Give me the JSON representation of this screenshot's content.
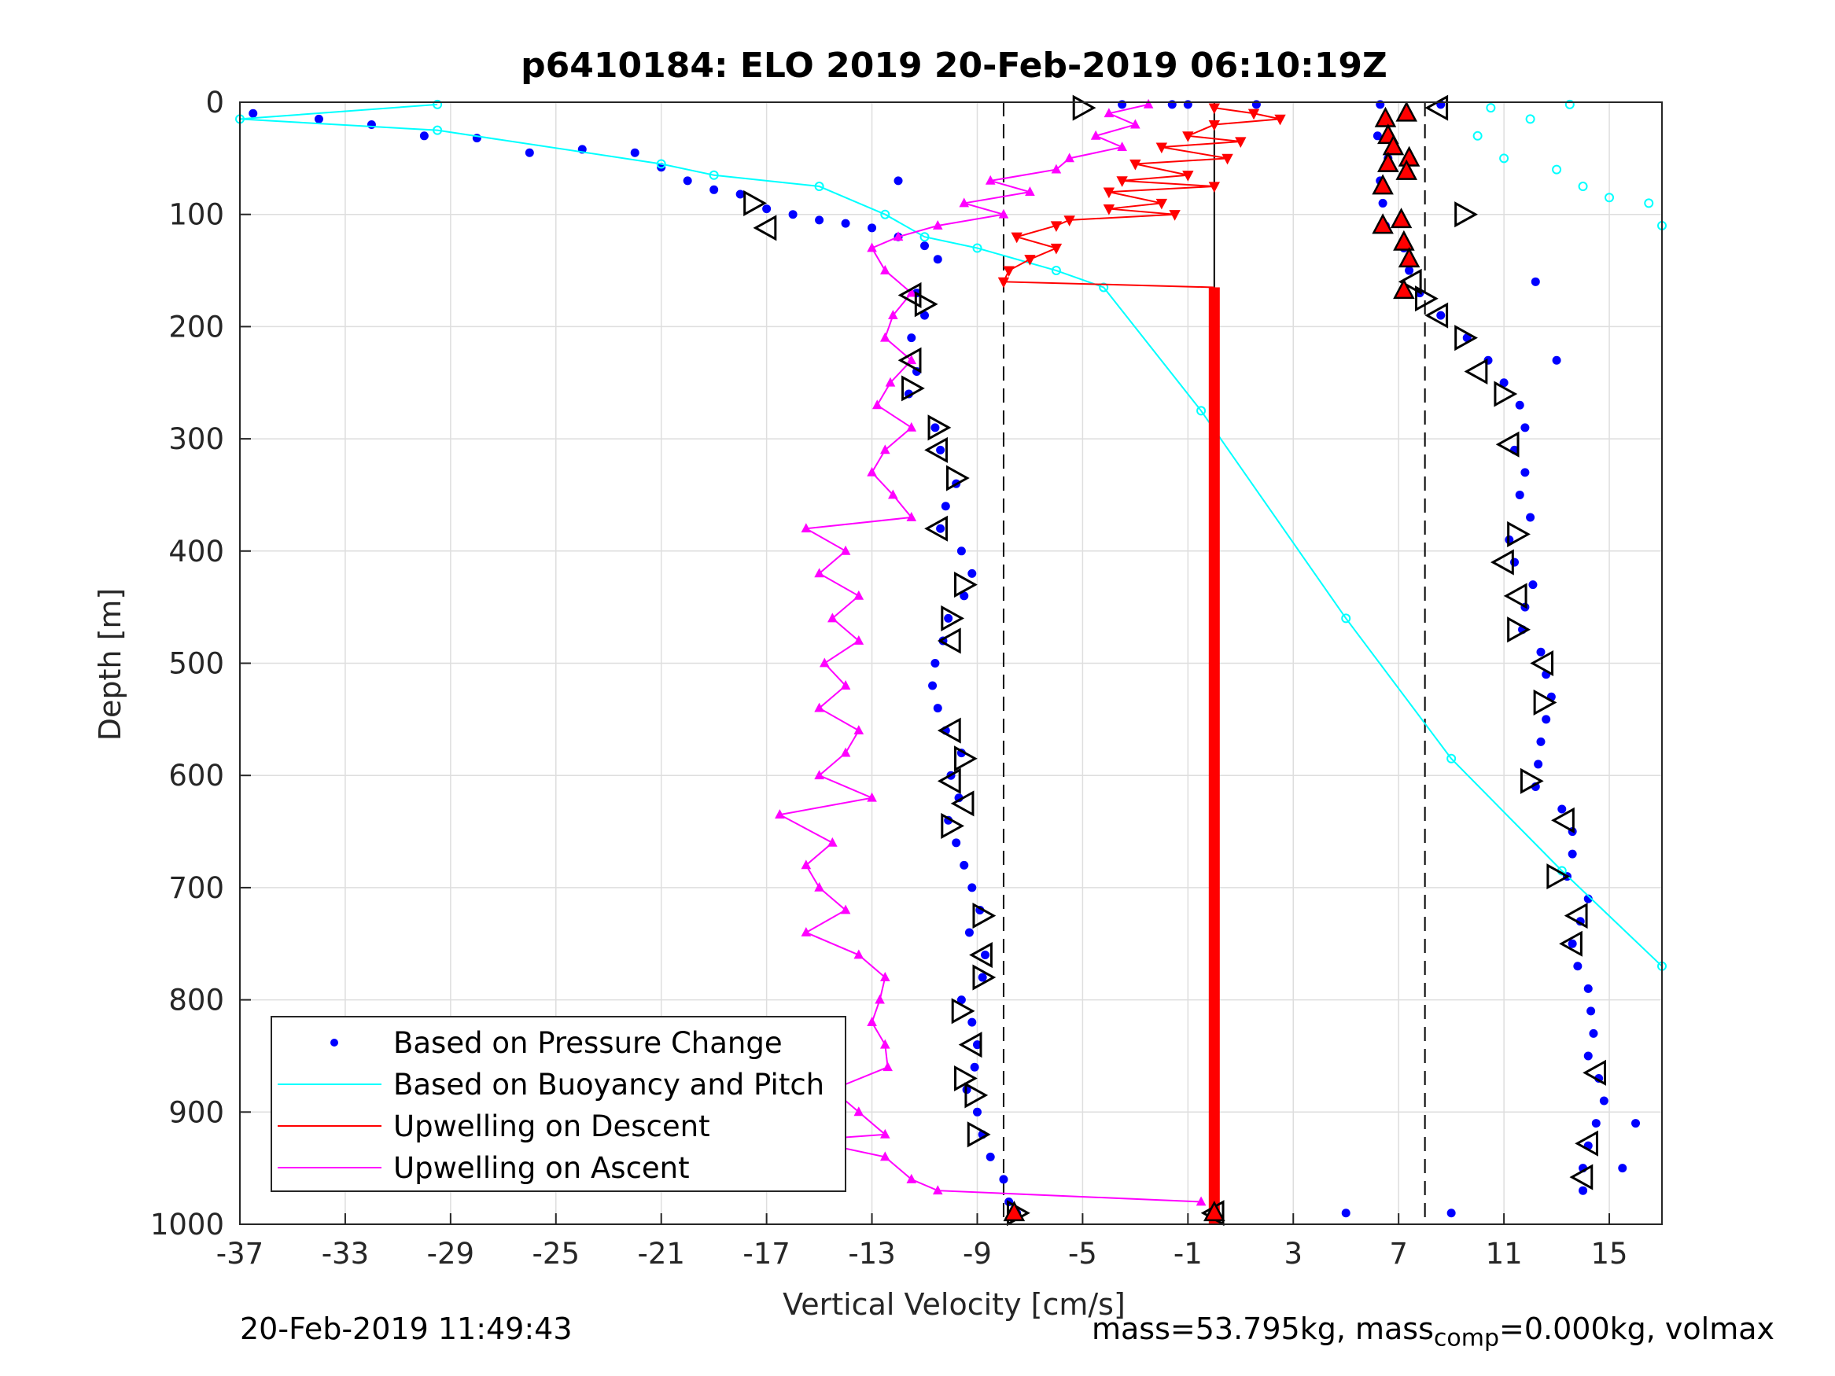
{
  "chart_data": {
    "type": "scatter",
    "title": "p6410184: ELO 2019 20-Feb-2019 06:10:19Z",
    "xlabel": "Vertical Velocity [cm/s]",
    "ylabel": "Depth [m]",
    "xlim": [
      -37,
      17
    ],
    "ylim": [
      0,
      1000
    ],
    "y_reversed": true,
    "grid": true,
    "x_ticks": [
      -37,
      -33,
      -29,
      -25,
      -21,
      -17,
      -13,
      -9,
      -5,
      -1,
      3,
      7,
      11,
      15
    ],
    "y_ticks": [
      0,
      100,
      200,
      300,
      400,
      500,
      600,
      700,
      800,
      900,
      1000
    ],
    "reference_lines": {
      "dashed_x": [
        -8,
        8
      ],
      "solid_x": [
        0
      ]
    },
    "legend": {
      "placement": "bottom-left",
      "entries": [
        {
          "label": "Based on Pressure Change",
          "color": "#0000ff",
          "marker": "dot"
        },
        {
          "label": "Based on Buoyancy and Pitch",
          "color": "#00ffff",
          "marker": "line"
        },
        {
          "label": "Upwelling on Descent",
          "color": "#ff0000",
          "marker": "line"
        },
        {
          "label": "Upwelling on Ascent",
          "color": "#ff00ff",
          "marker": "line"
        }
      ]
    },
    "series": [
      {
        "name": "Based on Pressure Change",
        "color": "#0000ff",
        "points": [
          [
            -7.5,
            990
          ],
          [
            -3.5,
            2
          ],
          [
            -1.6,
            2
          ],
          [
            -1.0,
            2
          ],
          [
            1.6,
            2
          ],
          [
            6.3,
            2
          ],
          [
            8.6,
            2
          ],
          [
            -36.5,
            10
          ],
          [
            -34,
            15
          ],
          [
            -32,
            20
          ],
          [
            -30,
            30
          ],
          [
            -28,
            32
          ],
          [
            -26,
            45
          ],
          [
            -24,
            42
          ],
          [
            -22,
            45
          ],
          [
            -21,
            58
          ],
          [
            -20,
            70
          ],
          [
            -19,
            78
          ],
          [
            -18,
            82
          ],
          [
            -17,
            95
          ],
          [
            -16,
            100
          ],
          [
            -15,
            105
          ],
          [
            -14,
            108
          ],
          [
            -13,
            112
          ],
          [
            -12,
            120
          ],
          [
            -11,
            128
          ],
          [
            -10.5,
            140
          ],
          [
            -11.3,
            170
          ],
          [
            -11,
            190
          ],
          [
            -11.5,
            210
          ],
          [
            -11.3,
            240
          ],
          [
            -11.6,
            260
          ],
          [
            -10.6,
            290
          ],
          [
            -10.4,
            310
          ],
          [
            -9.8,
            340
          ],
          [
            -10.2,
            360
          ],
          [
            -10.4,
            380
          ],
          [
            -9.6,
            400
          ],
          [
            -9.2,
            420
          ],
          [
            -9.5,
            440
          ],
          [
            -10.1,
            460
          ],
          [
            -10.3,
            480
          ],
          [
            -10.6,
            500
          ],
          [
            -10.7,
            520
          ],
          [
            -10.5,
            540
          ],
          [
            -10.2,
            560
          ],
          [
            -9.6,
            580
          ],
          [
            -10,
            600
          ],
          [
            -9.7,
            620
          ],
          [
            -10.1,
            640
          ],
          [
            -9.8,
            660
          ],
          [
            -9.5,
            680
          ],
          [
            -9.2,
            700
          ],
          [
            -8.9,
            720
          ],
          [
            -9.3,
            740
          ],
          [
            -8.7,
            760
          ],
          [
            -8.8,
            780
          ],
          [
            -9.6,
            800
          ],
          [
            -9.2,
            820
          ],
          [
            -9,
            840
          ],
          [
            -9.1,
            860
          ],
          [
            -9.4,
            880
          ],
          [
            -9,
            900
          ],
          [
            -8.8,
            920
          ],
          [
            -8.5,
            940
          ],
          [
            -8,
            960
          ],
          [
            -7.8,
            980
          ],
          [
            6.2,
            30
          ],
          [
            6.6,
            50
          ],
          [
            6.3,
            70
          ],
          [
            6.4,
            90
          ],
          [
            6.5,
            110
          ],
          [
            7.2,
            130
          ],
          [
            7.4,
            150
          ],
          [
            7.8,
            170
          ],
          [
            8.6,
            190
          ],
          [
            9.6,
            210
          ],
          [
            10.4,
            230
          ],
          [
            11,
            250
          ],
          [
            11.6,
            270
          ],
          [
            11.8,
            290
          ],
          [
            11.4,
            310
          ],
          [
            11.8,
            330
          ],
          [
            11.6,
            350
          ],
          [
            12,
            370
          ],
          [
            11.2,
            390
          ],
          [
            11.4,
            410
          ],
          [
            12.1,
            430
          ],
          [
            11.8,
            450
          ],
          [
            11.7,
            470
          ],
          [
            12.4,
            490
          ],
          [
            12.6,
            510
          ],
          [
            12.8,
            530
          ],
          [
            12.6,
            550
          ],
          [
            12.4,
            570
          ],
          [
            12.3,
            590
          ],
          [
            12.2,
            610
          ],
          [
            13.2,
            630
          ],
          [
            13.6,
            650
          ],
          [
            13.6,
            670
          ],
          [
            13.4,
            690
          ],
          [
            14.2,
            710
          ],
          [
            13.9,
            730
          ],
          [
            13.6,
            750
          ],
          [
            13.8,
            770
          ],
          [
            14.2,
            790
          ],
          [
            14.3,
            810
          ],
          [
            14.4,
            830
          ],
          [
            14.2,
            850
          ],
          [
            14.6,
            870
          ],
          [
            14.8,
            890
          ],
          [
            14.5,
            910
          ],
          [
            14.2,
            930
          ],
          [
            14.0,
            950
          ],
          [
            14.0,
            970
          ],
          [
            5,
            990
          ],
          [
            9,
            990
          ],
          [
            -12,
            70
          ],
          [
            12.2,
            160
          ],
          [
            13,
            230
          ],
          [
            16,
            910
          ],
          [
            15.5,
            950
          ]
        ]
      },
      {
        "name": "Based on Buoyancy and Pitch",
        "color": "#00ffff",
        "points": [
          [
            -29.5,
            2
          ],
          [
            -37,
            15
          ],
          [
            -29.5,
            25
          ],
          [
            -21,
            55
          ],
          [
            -19,
            65
          ],
          [
            -15,
            75
          ],
          [
            -12.5,
            100
          ],
          [
            -11,
            120
          ],
          [
            -9,
            130
          ],
          [
            -6,
            150
          ],
          [
            -4.2,
            165
          ],
          [
            -0.5,
            275
          ],
          [
            5,
            460
          ],
          [
            9,
            585
          ],
          [
            13.2,
            685
          ],
          [
            17,
            770
          ],
          [
            10,
            30
          ],
          [
            11,
            50
          ],
          [
            13,
            60
          ],
          [
            14,
            75
          ],
          [
            15,
            85
          ],
          [
            16.5,
            90
          ],
          [
            17,
            110
          ],
          [
            10.5,
            5
          ],
          [
            12,
            15
          ],
          [
            13.5,
            2
          ]
        ]
      },
      {
        "name": "Upwelling on Descent",
        "color": "#ff0000",
        "points": [
          [
            0,
            5
          ],
          [
            1.5,
            10
          ],
          [
            2.5,
            15
          ],
          [
            0,
            20
          ],
          [
            -1,
            30
          ],
          [
            1,
            35
          ],
          [
            -2,
            40
          ],
          [
            0.5,
            50
          ],
          [
            -3,
            55
          ],
          [
            -1,
            65
          ],
          [
            -3.5,
            70
          ],
          [
            0,
            75
          ],
          [
            -4,
            80
          ],
          [
            -2,
            90
          ],
          [
            -4,
            95
          ],
          [
            -1.5,
            100
          ],
          [
            -5.5,
            105
          ],
          [
            -6,
            110
          ],
          [
            -7.5,
            120
          ],
          [
            -6,
            130
          ],
          [
            -7,
            140
          ],
          [
            -7.8,
            150
          ],
          [
            -8,
            160
          ],
          [
            0,
            165
          ],
          [
            0,
            1000
          ]
        ]
      },
      {
        "name": "Upwelling on Ascent",
        "color": "#ff00ff",
        "points": [
          [
            -2.5,
            2
          ],
          [
            -4,
            10
          ],
          [
            -3,
            20
          ],
          [
            -4.5,
            30
          ],
          [
            -3.5,
            40
          ],
          [
            -5.5,
            50
          ],
          [
            -6,
            60
          ],
          [
            -8.5,
            70
          ],
          [
            -7,
            80
          ],
          [
            -9.5,
            90
          ],
          [
            -8,
            100
          ],
          [
            -10.5,
            110
          ],
          [
            -12,
            120
          ],
          [
            -13,
            130
          ],
          [
            -12.5,
            150
          ],
          [
            -11.5,
            170
          ],
          [
            -12.2,
            190
          ],
          [
            -12.5,
            210
          ],
          [
            -11.5,
            230
          ],
          [
            -12.3,
            250
          ],
          [
            -12.8,
            270
          ],
          [
            -11.5,
            290
          ],
          [
            -12.5,
            310
          ],
          [
            -13,
            330
          ],
          [
            -12.2,
            350
          ],
          [
            -11.5,
            370
          ],
          [
            -15.5,
            380
          ],
          [
            -14,
            400
          ],
          [
            -15,
            420
          ],
          [
            -13.5,
            440
          ],
          [
            -14.5,
            460
          ],
          [
            -13.5,
            480
          ],
          [
            -14.8,
            500
          ],
          [
            -14,
            520
          ],
          [
            -15,
            540
          ],
          [
            -13.5,
            560
          ],
          [
            -14,
            580
          ],
          [
            -15,
            600
          ],
          [
            -13,
            620
          ],
          [
            -16.5,
            635
          ],
          [
            -14.5,
            660
          ],
          [
            -15.5,
            680
          ],
          [
            -15,
            700
          ],
          [
            -14,
            720
          ],
          [
            -15.5,
            740
          ],
          [
            -13.5,
            760
          ],
          [
            -12.5,
            780
          ],
          [
            -12.7,
            800
          ],
          [
            -13,
            820
          ],
          [
            -12.5,
            840
          ],
          [
            -12.4,
            860
          ],
          [
            -14.5,
            880
          ],
          [
            -13.5,
            900
          ],
          [
            -12.5,
            920
          ],
          [
            -15.5,
            925
          ],
          [
            -12.5,
            940
          ],
          [
            -11.5,
            960
          ],
          [
            -10.5,
            970
          ],
          [
            -0.5,
            980
          ]
        ]
      }
    ],
    "markers": {
      "black_triangles": [
        [
          -5,
          5
        ],
        [
          8.5,
          5
        ],
        [
          -17.5,
          90
        ],
        [
          -17,
          112
        ],
        [
          9.5,
          100
        ],
        [
          -11.5,
          172
        ],
        [
          -11,
          180
        ],
        [
          7.5,
          160
        ],
        [
          8,
          175
        ],
        [
          8.5,
          190
        ],
        [
          9.5,
          210
        ],
        [
          10,
          240
        ],
        [
          11,
          260
        ],
        [
          -11.5,
          230
        ],
        [
          -11.5,
          255
        ],
        [
          11.2,
          305
        ],
        [
          -10.5,
          290
        ],
        [
          -10.5,
          310
        ],
        [
          -9.8,
          335
        ],
        [
          -10.5,
          380
        ],
        [
          11.5,
          385
        ],
        [
          11,
          410
        ],
        [
          -9.5,
          430
        ],
        [
          11.5,
          440
        ],
        [
          -10,
          460
        ],
        [
          -10,
          480
        ],
        [
          11.5,
          470
        ],
        [
          12.5,
          500
        ],
        [
          12.5,
          535
        ],
        [
          -10,
          560
        ],
        [
          -9.5,
          585
        ],
        [
          -10,
          605
        ],
        [
          12,
          605
        ],
        [
          -9.5,
          625
        ],
        [
          -10,
          645
        ],
        [
          13.3,
          640
        ],
        [
          13,
          690
        ],
        [
          13.8,
          725
        ],
        [
          -8.8,
          725
        ],
        [
          -8.8,
          760
        ],
        [
          -8.8,
          780
        ],
        [
          13.6,
          750
        ],
        [
          -9.6,
          810
        ],
        [
          -9.2,
          840
        ],
        [
          -9.5,
          870
        ],
        [
          14.5,
          865
        ],
        [
          -9.1,
          885
        ],
        [
          14.2,
          928
        ],
        [
          -9,
          920
        ],
        [
          14,
          958
        ],
        [
          -7.5,
          990
        ],
        [
          0,
          990
        ]
      ],
      "red_triangles": [
        [
          7.3,
          10
        ],
        [
          6.5,
          15
        ],
        [
          6.6,
          30
        ],
        [
          6.8,
          40
        ],
        [
          7.4,
          50
        ],
        [
          6.6,
          55
        ],
        [
          7.3,
          62
        ],
        [
          6.4,
          75
        ],
        [
          7.1,
          105
        ],
        [
          6.4,
          110
        ],
        [
          7.2,
          125
        ],
        [
          7.4,
          140
        ],
        [
          7.2,
          168
        ],
        [
          -7.6,
          990
        ],
        [
          0,
          990
        ]
      ]
    }
  },
  "footer": {
    "timestamp": "20-Feb-2019 11:49:43",
    "mass_prefix": "mass=53.795kg, mass",
    "mass_sub": "comp",
    "mass_suffix": "=0.000kg, volmax"
  }
}
